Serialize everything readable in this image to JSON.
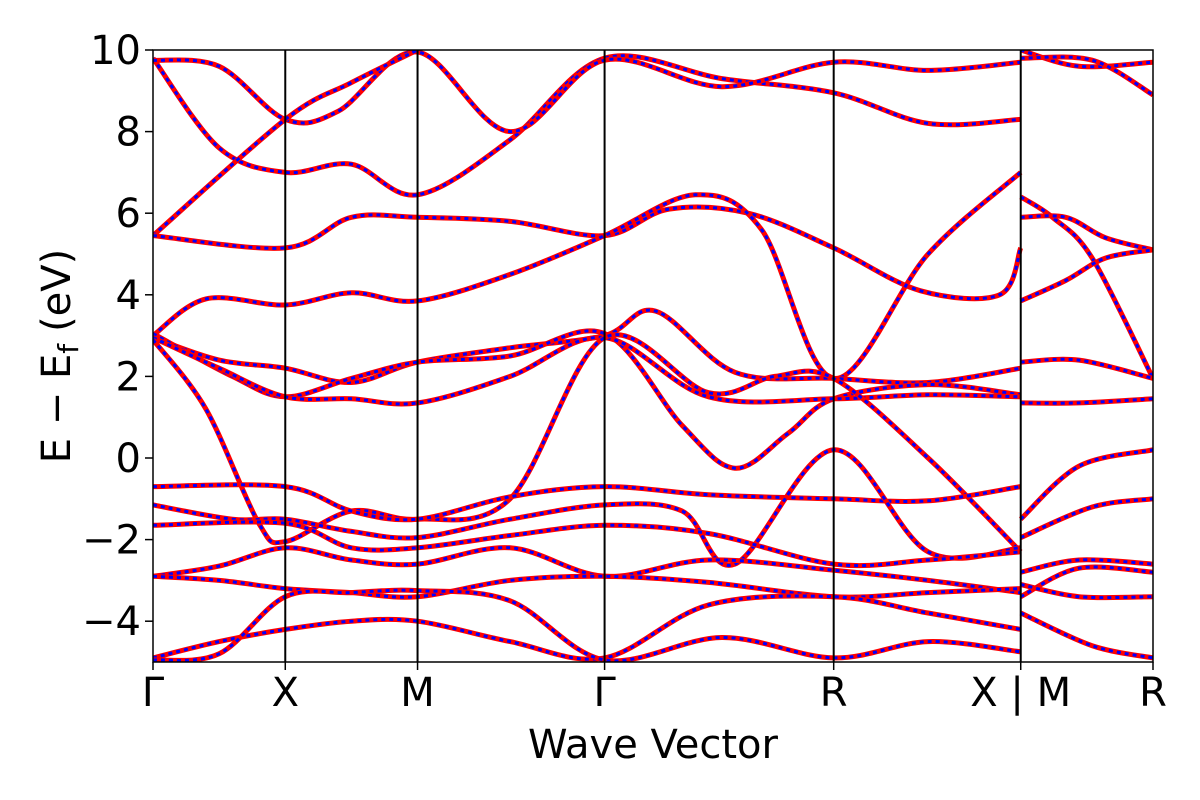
{
  "chart_data": {
    "type": "line",
    "title": "",
    "xlabel": "Wave Vector",
    "ylabel": "E − E",
    "ylabel_subscript": "f",
    "ylabel_unit": "(eV)",
    "ylim": [
      -5,
      10
    ],
    "yticks": [
      -4,
      -2,
      0,
      2,
      4,
      6,
      8,
      10
    ],
    "ytick_labels": [
      "−4",
      "−2",
      "0",
      "2",
      "4",
      "6",
      "8",
      "10"
    ],
    "kpath_labels": [
      "Γ",
      "X",
      "M",
      "Γ",
      "R",
      "X | M",
      "R"
    ],
    "kpath_positions": [
      0,
      0.5,
      1.0,
      1.707,
      2.573,
      3.28,
      3.78
    ],
    "kpath_break": [
      3.28,
      3.78
    ],
    "grid": false,
    "series_styles": [
      {
        "color": "#ff0000",
        "dash": "solid"
      },
      {
        "color": "#0000ff",
        "dash": "dashed"
      }
    ],
    "series": [
      {
        "points": [
          [
            0,
            9.8
          ],
          [
            0.25,
            7.6
          ],
          [
            0.5,
            7.0
          ],
          [
            0.75,
            7.2
          ],
          [
            1.0,
            6.45
          ],
          [
            1.35,
            7.8
          ],
          [
            1.707,
            9.8
          ],
          [
            2.15,
            9.3
          ],
          [
            2.573,
            8.95
          ],
          [
            2.93,
            8.2
          ],
          [
            3.28,
            8.3
          ]
        ]
      },
      {
        "points": [
          [
            0,
            9.75
          ],
          [
            0.25,
            9.6
          ],
          [
            0.5,
            8.3
          ],
          [
            0.7,
            8.5
          ],
          [
            1.0,
            9.95
          ],
          [
            1.35,
            8.0
          ],
          [
            1.707,
            9.75
          ],
          [
            2.15,
            9.1
          ],
          [
            2.573,
            9.7
          ],
          [
            2.93,
            9.5
          ],
          [
            3.28,
            9.7
          ]
        ]
      },
      {
        "points": [
          [
            0,
            5.45
          ],
          [
            0.5,
            8.3
          ],
          [
            0.75,
            9.2
          ],
          [
            1.0,
            10.0
          ]
        ]
      },
      {
        "points": [
          [
            0,
            5.45
          ],
          [
            0.5,
            5.15
          ],
          [
            0.75,
            5.9
          ],
          [
            1.0,
            5.9
          ],
          [
            1.35,
            5.8
          ],
          [
            1.707,
            5.45
          ],
          [
            1.95,
            6.1
          ],
          [
            2.25,
            6.0
          ],
          [
            2.573,
            5.15
          ],
          [
            2.9,
            4.1
          ],
          [
            3.2,
            4.0
          ],
          [
            3.28,
            5.15
          ]
        ]
      },
      {
        "points": [
          [
            0,
            3.0
          ],
          [
            0.2,
            3.9
          ],
          [
            0.5,
            3.75
          ],
          [
            0.75,
            4.05
          ],
          [
            1.0,
            3.85
          ],
          [
            1.35,
            4.5
          ],
          [
            1.707,
            5.45
          ],
          [
            2.05,
            6.45
          ],
          [
            2.3,
            5.6
          ],
          [
            2.573,
            1.95
          ],
          [
            2.93,
            5.0
          ],
          [
            3.28,
            7.0
          ]
        ]
      },
      {
        "points": [
          [
            0,
            2.95
          ],
          [
            0.25,
            2.4
          ],
          [
            0.5,
            2.2
          ],
          [
            0.75,
            1.85
          ],
          [
            1.0,
            2.35
          ],
          [
            1.35,
            2.7
          ],
          [
            1.707,
            3.0
          ],
          [
            1.9,
            3.6
          ],
          [
            2.2,
            2.1
          ],
          [
            2.573,
            1.95
          ],
          [
            2.93,
            1.85
          ],
          [
            3.28,
            2.2
          ]
        ]
      },
      {
        "points": [
          [
            0,
            3.05
          ],
          [
            0.3,
            2.0
          ],
          [
            0.5,
            1.5
          ],
          [
            0.75,
            1.95
          ],
          [
            1.0,
            2.35
          ],
          [
            1.35,
            2.5
          ],
          [
            1.707,
            3.05
          ],
          [
            2.0,
            0.8
          ],
          [
            2.2,
            -0.25
          ],
          [
            2.4,
            0.6
          ],
          [
            2.573,
            1.45
          ],
          [
            2.93,
            1.8
          ],
          [
            3.28,
            1.55
          ]
        ]
      },
      {
        "points": [
          [
            0,
            2.95
          ],
          [
            0.25,
            2.2
          ],
          [
            0.5,
            1.5
          ],
          [
            0.75,
            1.45
          ],
          [
            1.0,
            1.35
          ],
          [
            1.35,
            2.0
          ],
          [
            1.707,
            2.95
          ],
          [
            2.1,
            1.5
          ],
          [
            2.573,
            1.45
          ],
          [
            2.93,
            1.55
          ],
          [
            3.28,
            1.5
          ]
        ]
      },
      {
        "points": [
          [
            0,
            2.9
          ],
          [
            0.2,
            1.2
          ],
          [
            0.4,
            -1.6
          ],
          [
            0.5,
            -2.05
          ],
          [
            0.75,
            -1.3
          ],
          [
            1.0,
            -1.5
          ],
          [
            1.35,
            -1.0
          ],
          [
            1.707,
            2.95
          ],
          [
            2.1,
            1.6
          ],
          [
            2.35,
            2.0
          ],
          [
            2.573,
            1.95
          ],
          [
            2.93,
            0.0
          ],
          [
            3.28,
            -2.3
          ]
        ]
      },
      {
        "points": [
          [
            0,
            -0.7
          ],
          [
            0.5,
            -0.7
          ],
          [
            0.75,
            -1.3
          ],
          [
            1.0,
            -1.5
          ],
          [
            1.35,
            -0.95
          ],
          [
            1.707,
            -0.7
          ],
          [
            2.1,
            -0.9
          ],
          [
            2.573,
            -1.0
          ],
          [
            2.93,
            -1.05
          ],
          [
            3.28,
            -0.7
          ]
        ]
      },
      {
        "points": [
          [
            0,
            -1.15
          ],
          [
            0.3,
            -1.5
          ],
          [
            0.5,
            -1.5
          ],
          [
            0.75,
            -1.8
          ],
          [
            1.0,
            -1.95
          ],
          [
            1.35,
            -1.5
          ],
          [
            1.707,
            -1.15
          ],
          [
            2.0,
            -1.3
          ],
          [
            2.2,
            -2.6
          ],
          [
            2.573,
            0.2
          ],
          [
            2.93,
            -2.3
          ],
          [
            3.28,
            -2.2
          ]
        ]
      },
      {
        "points": [
          [
            0,
            -1.65
          ],
          [
            0.5,
            -1.6
          ],
          [
            0.75,
            -2.2
          ],
          [
            1.0,
            -2.2
          ],
          [
            1.35,
            -1.9
          ],
          [
            1.707,
            -1.65
          ],
          [
            2.1,
            -1.85
          ],
          [
            2.573,
            -2.6
          ],
          [
            2.93,
            -2.5
          ],
          [
            3.28,
            -2.3
          ]
        ]
      },
      {
        "points": [
          [
            0,
            -2.9
          ],
          [
            0.25,
            -2.65
          ],
          [
            0.5,
            -2.2
          ],
          [
            0.75,
            -2.5
          ],
          [
            1.0,
            -2.6
          ],
          [
            1.35,
            -2.2
          ],
          [
            1.707,
            -2.9
          ],
          [
            2.1,
            -2.5
          ],
          [
            2.573,
            -2.75
          ],
          [
            2.93,
            -3.0
          ],
          [
            3.28,
            -3.3
          ]
        ]
      },
      {
        "points": [
          [
            0,
            -2.9
          ],
          [
            0.25,
            -3.0
          ],
          [
            0.5,
            -3.2
          ],
          [
            0.75,
            -3.3
          ],
          [
            1.0,
            -3.4
          ],
          [
            1.35,
            -3.0
          ],
          [
            1.707,
            -2.9
          ],
          [
            2.1,
            -3.05
          ],
          [
            2.573,
            -3.4
          ],
          [
            2.93,
            -3.3
          ],
          [
            3.28,
            -3.2
          ]
        ]
      },
      {
        "points": [
          [
            0,
            -4.9
          ],
          [
            0.25,
            -4.5
          ],
          [
            0.5,
            -4.2
          ],
          [
            0.75,
            -4.0
          ],
          [
            1.0,
            -4.0
          ],
          [
            1.35,
            -4.5
          ],
          [
            1.707,
            -4.9
          ],
          [
            2.1,
            -3.6
          ],
          [
            2.573,
            -3.4
          ],
          [
            2.93,
            -3.8
          ],
          [
            3.28,
            -4.2
          ]
        ]
      },
      {
        "points": [
          [
            0,
            -4.95
          ],
          [
            0.25,
            -4.8
          ],
          [
            0.5,
            -3.4
          ],
          [
            0.75,
            -3.3
          ],
          [
            1.0,
            -3.25
          ],
          [
            1.35,
            -3.5
          ],
          [
            1.707,
            -4.95
          ],
          [
            2.15,
            -4.4
          ],
          [
            2.573,
            -4.9
          ],
          [
            2.93,
            -4.5
          ],
          [
            3.28,
            -4.75
          ]
        ]
      },
      {
        "points": [
          [
            3.28,
            10.0
          ],
          [
            3.5,
            9.6
          ],
          [
            3.78,
            9.7
          ]
        ]
      },
      {
        "points": [
          [
            3.28,
            9.8
          ],
          [
            3.55,
            9.75
          ],
          [
            3.78,
            8.9
          ]
        ]
      },
      {
        "points": [
          [
            3.28,
            6.4
          ],
          [
            3.4,
            5.9
          ],
          [
            3.55,
            4.9
          ],
          [
            3.78,
            1.95
          ]
        ]
      },
      {
        "points": [
          [
            3.28,
            5.9
          ],
          [
            3.45,
            5.9
          ],
          [
            3.6,
            5.4
          ],
          [
            3.78,
            5.1
          ]
        ]
      },
      {
        "points": [
          [
            3.28,
            3.85
          ],
          [
            3.45,
            4.35
          ],
          [
            3.6,
            4.9
          ],
          [
            3.78,
            5.1
          ]
        ]
      },
      {
        "points": [
          [
            3.28,
            2.35
          ],
          [
            3.5,
            2.4
          ],
          [
            3.78,
            1.95
          ]
        ]
      },
      {
        "points": [
          [
            3.28,
            1.35
          ],
          [
            3.5,
            1.35
          ],
          [
            3.78,
            1.45
          ]
        ]
      },
      {
        "points": [
          [
            3.28,
            -1.5
          ],
          [
            3.5,
            -0.2
          ],
          [
            3.78,
            0.2
          ]
        ]
      },
      {
        "points": [
          [
            3.28,
            -1.95
          ],
          [
            3.55,
            -1.2
          ],
          [
            3.78,
            -1.0
          ]
        ]
      },
      {
        "points": [
          [
            3.28,
            -2.8
          ],
          [
            3.5,
            -2.5
          ],
          [
            3.78,
            -2.6
          ]
        ]
      },
      {
        "points": [
          [
            3.28,
            -3.4
          ],
          [
            3.5,
            -2.7
          ],
          [
            3.78,
            -2.8
          ]
        ]
      },
      {
        "points": [
          [
            3.28,
            -3.1
          ],
          [
            3.5,
            -3.4
          ],
          [
            3.78,
            -3.4
          ]
        ]
      },
      {
        "points": [
          [
            3.28,
            -3.8
          ],
          [
            3.55,
            -4.6
          ],
          [
            3.78,
            -4.9
          ]
        ]
      }
    ]
  }
}
